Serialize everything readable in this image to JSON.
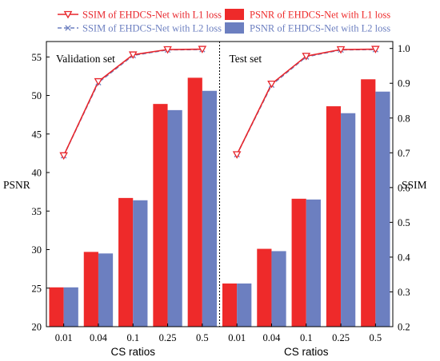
{
  "chart_data": {
    "type": "bar",
    "categories": [
      "0.01",
      "0.04",
      "0.1",
      "0.25",
      "0.5",
      "0.01",
      "0.04",
      "0.1",
      "0.25",
      "0.5"
    ],
    "panels": [
      {
        "label": "Validation set",
        "psnr_l1": [
          25.1,
          29.7,
          36.7,
          48.9,
          52.3
        ],
        "psnr_l2": [
          25.1,
          29.5,
          36.4,
          48.1,
          50.6
        ],
        "ssim_l1": [
          0.692,
          0.905,
          0.982,
          0.997,
          0.998
        ],
        "ssim_l2": [
          0.692,
          0.902,
          0.98,
          0.996,
          0.997
        ]
      },
      {
        "label": "Test set",
        "psnr_l1": [
          25.6,
          30.1,
          36.6,
          48.6,
          52.1
        ],
        "psnr_l2": [
          25.6,
          29.8,
          36.5,
          47.7,
          50.5
        ],
        "ssim_l1": [
          0.695,
          0.898,
          0.978,
          0.997,
          0.998
        ],
        "ssim_l2": [
          0.695,
          0.895,
          0.976,
          0.996,
          0.997
        ]
      }
    ],
    "series": [
      {
        "name": "SSIM of EHDCS-Net with L1 loss",
        "color": "#e8262c"
      },
      {
        "name": "SSIM of EHDCS-Net with L2 loss",
        "color": "#6c7fc0"
      },
      {
        "name": "PSNR of EHDCS-Net with L1 loss",
        "color": "#ee2a2a"
      },
      {
        "name": "PSNR of EHDCS-Net with L2 loss",
        "color": "#6c7fc0"
      }
    ],
    "xlabel": "CS ratios",
    "ylabel_left": "PSNR",
    "ylabel_right": "SSIM",
    "ylim_left": [
      20,
      57
    ],
    "yticks_left": [
      "20",
      "25",
      "30",
      "35",
      "40",
      "45",
      "50",
      "55"
    ],
    "ylim_right": [
      0.2,
      1.02
    ],
    "yticks_right": [
      "0.2",
      "0.3",
      "0.4",
      "0.5",
      "0.6",
      "0.7",
      "0.8",
      "0.9",
      "1.0"
    ],
    "legend_position": "top",
    "grid": false
  }
}
